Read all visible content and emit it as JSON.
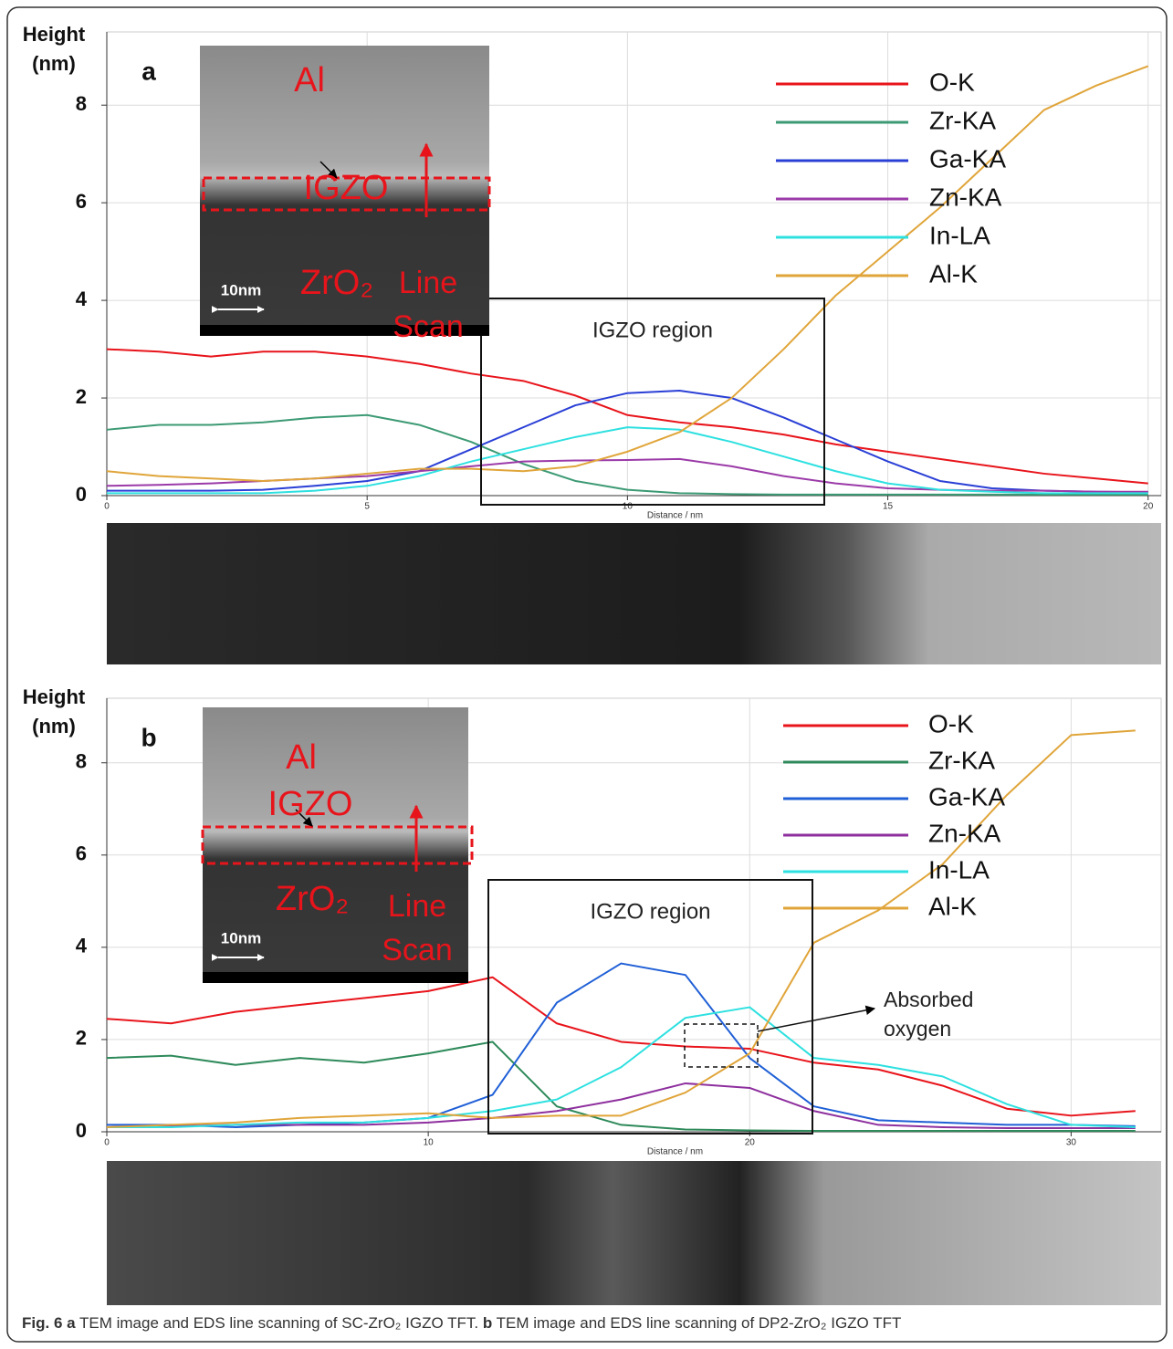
{
  "chart_data": [
    {
      "type": "line",
      "panel_label": "a",
      "ylabel": "Height (nm)",
      "xlabel": "Distance / nm",
      "x": [
        0,
        1,
        2,
        3,
        4,
        5,
        6,
        7,
        8,
        9,
        10,
        11,
        12,
        13,
        14,
        15,
        16,
        17,
        18,
        19,
        20
      ],
      "xlim": [
        0,
        20.25
      ],
      "ylim": [
        0,
        9.5
      ],
      "xticks": [
        0,
        5,
        10,
        15,
        20
      ],
      "yticks": [
        0,
        2,
        4,
        6,
        8
      ],
      "grid": true,
      "legend": "upper right",
      "series": [
        {
          "name": "O-K",
          "color": "#e8141b",
          "values": [
            3.0,
            2.95,
            2.85,
            2.95,
            2.95,
            2.85,
            2.7,
            2.5,
            2.35,
            2.05,
            1.65,
            1.5,
            1.4,
            1.25,
            1.05,
            0.9,
            0.75,
            0.6,
            0.45,
            0.35,
            0.25
          ]
        },
        {
          "name": "Zr-KA",
          "color": "#3c9a74",
          "values": [
            1.35,
            1.45,
            1.45,
            1.5,
            1.6,
            1.65,
            1.45,
            1.1,
            0.65,
            0.3,
            0.12,
            0.05,
            0.03,
            0.02,
            0.02,
            0.02,
            0.02,
            0.02,
            0.02,
            0.02,
            0.02
          ]
        },
        {
          "name": "Ga-KA",
          "color": "#2a3fd6",
          "values": [
            0.1,
            0.1,
            0.1,
            0.12,
            0.2,
            0.3,
            0.5,
            0.95,
            1.4,
            1.85,
            2.1,
            2.15,
            2.0,
            1.6,
            1.15,
            0.7,
            0.3,
            0.15,
            0.1,
            0.08,
            0.07
          ]
        },
        {
          "name": "Zn-KA",
          "color": "#9b3aa8",
          "values": [
            0.2,
            0.22,
            0.25,
            0.3,
            0.35,
            0.4,
            0.5,
            0.6,
            0.7,
            0.72,
            0.73,
            0.75,
            0.6,
            0.4,
            0.25,
            0.15,
            0.12,
            0.1,
            0.1,
            0.08,
            0.08
          ]
        },
        {
          "name": "In-LA",
          "color": "#2ee0e0",
          "values": [
            0.05,
            0.05,
            0.05,
            0.05,
            0.1,
            0.2,
            0.4,
            0.7,
            0.95,
            1.2,
            1.4,
            1.35,
            1.1,
            0.8,
            0.5,
            0.25,
            0.12,
            0.08,
            0.05,
            0.05,
            0.05
          ]
        },
        {
          "name": "Al-K",
          "color": "#e0a53a",
          "values": [
            0.5,
            0.4,
            0.35,
            0.3,
            0.35,
            0.45,
            0.55,
            0.55,
            0.5,
            0.6,
            0.9,
            1.3,
            2.0,
            3.0,
            4.1,
            5.0,
            5.9,
            6.9,
            7.9,
            8.4,
            8.8
          ]
        }
      ],
      "region_label": "IGZO region",
      "inset": {
        "layer_top": "Al",
        "layer_mid": "IGZO",
        "layer_bottom": "ZrO₂",
        "arrow_label": "Line Scan",
        "scale_bar": "10nm"
      }
    },
    {
      "type": "line",
      "panel_label": "b",
      "ylabel": "Height (nm)",
      "xlabel": "Distance / nm",
      "x": [
        0,
        2,
        4,
        6,
        8,
        10,
        12,
        14,
        16,
        18,
        20,
        22,
        24,
        26,
        28,
        30,
        32
      ],
      "xlim": [
        0,
        32.8
      ],
      "ylim": [
        0,
        9.4
      ],
      "xticks": [
        0,
        10,
        20,
        30
      ],
      "yticks": [
        0,
        2,
        4,
        6,
        8
      ],
      "grid": true,
      "legend": "upper right",
      "series": [
        {
          "name": "O-K",
          "color": "#e8141b",
          "values": [
            2.45,
            2.35,
            2.6,
            2.75,
            2.9,
            3.05,
            3.35,
            2.35,
            1.95,
            1.85,
            1.8,
            1.5,
            1.35,
            1.0,
            0.5,
            0.35,
            0.45
          ]
        },
        {
          "name": "Zr-KA",
          "color": "#2e8a5a",
          "values": [
            1.6,
            1.65,
            1.45,
            1.6,
            1.5,
            1.7,
            1.95,
            0.55,
            0.15,
            0.05,
            0.03,
            0.02,
            0.02,
            0.02,
            0.02,
            0.02,
            0.02
          ]
        },
        {
          "name": "Ga-KA",
          "color": "#1f5fd6",
          "values": [
            0.15,
            0.15,
            0.1,
            0.15,
            0.2,
            0.3,
            0.8,
            2.8,
            3.65,
            3.4,
            1.6,
            0.55,
            0.25,
            0.2,
            0.15,
            0.15,
            0.12
          ]
        },
        {
          "name": "Zn-KA",
          "color": "#8e2f9e",
          "values": [
            0.1,
            0.12,
            0.15,
            0.15,
            0.15,
            0.2,
            0.3,
            0.45,
            0.7,
            1.05,
            0.95,
            0.45,
            0.15,
            0.1,
            0.08,
            0.08,
            0.08
          ]
        },
        {
          "name": "In-LA",
          "color": "#2ee0e0",
          "values": [
            0.1,
            0.1,
            0.15,
            0.2,
            0.2,
            0.3,
            0.45,
            0.7,
            1.4,
            2.47,
            2.7,
            1.6,
            1.45,
            1.2,
            0.6,
            0.15,
            0.1
          ]
        },
        {
          "name": "Al-K",
          "color": "#e0a53a",
          "values": [
            0.1,
            0.15,
            0.2,
            0.3,
            0.35,
            0.4,
            0.3,
            0.35,
            0.35,
            0.85,
            1.7,
            4.1,
            4.8,
            5.8,
            7.3,
            8.6,
            8.7
          ]
        }
      ],
      "region_label": "IGZO region",
      "annotation": "Absorbed oxygen",
      "inset": {
        "layer_top": "Al",
        "layer_mid": "IGZO",
        "layer_bottom": "ZrO₂",
        "arrow_label": "Line Scan",
        "scale_bar": "10nm"
      }
    }
  ],
  "caption": {
    "label_a": "Fig. 6 a",
    "text_a": "TEM image and EDS line scanning of SC-ZrO₂ IGZO TFT.",
    "label_b": "b",
    "text_b": "TEM image and EDS line scanning of DP2-ZrO₂ IGZO TFT"
  }
}
